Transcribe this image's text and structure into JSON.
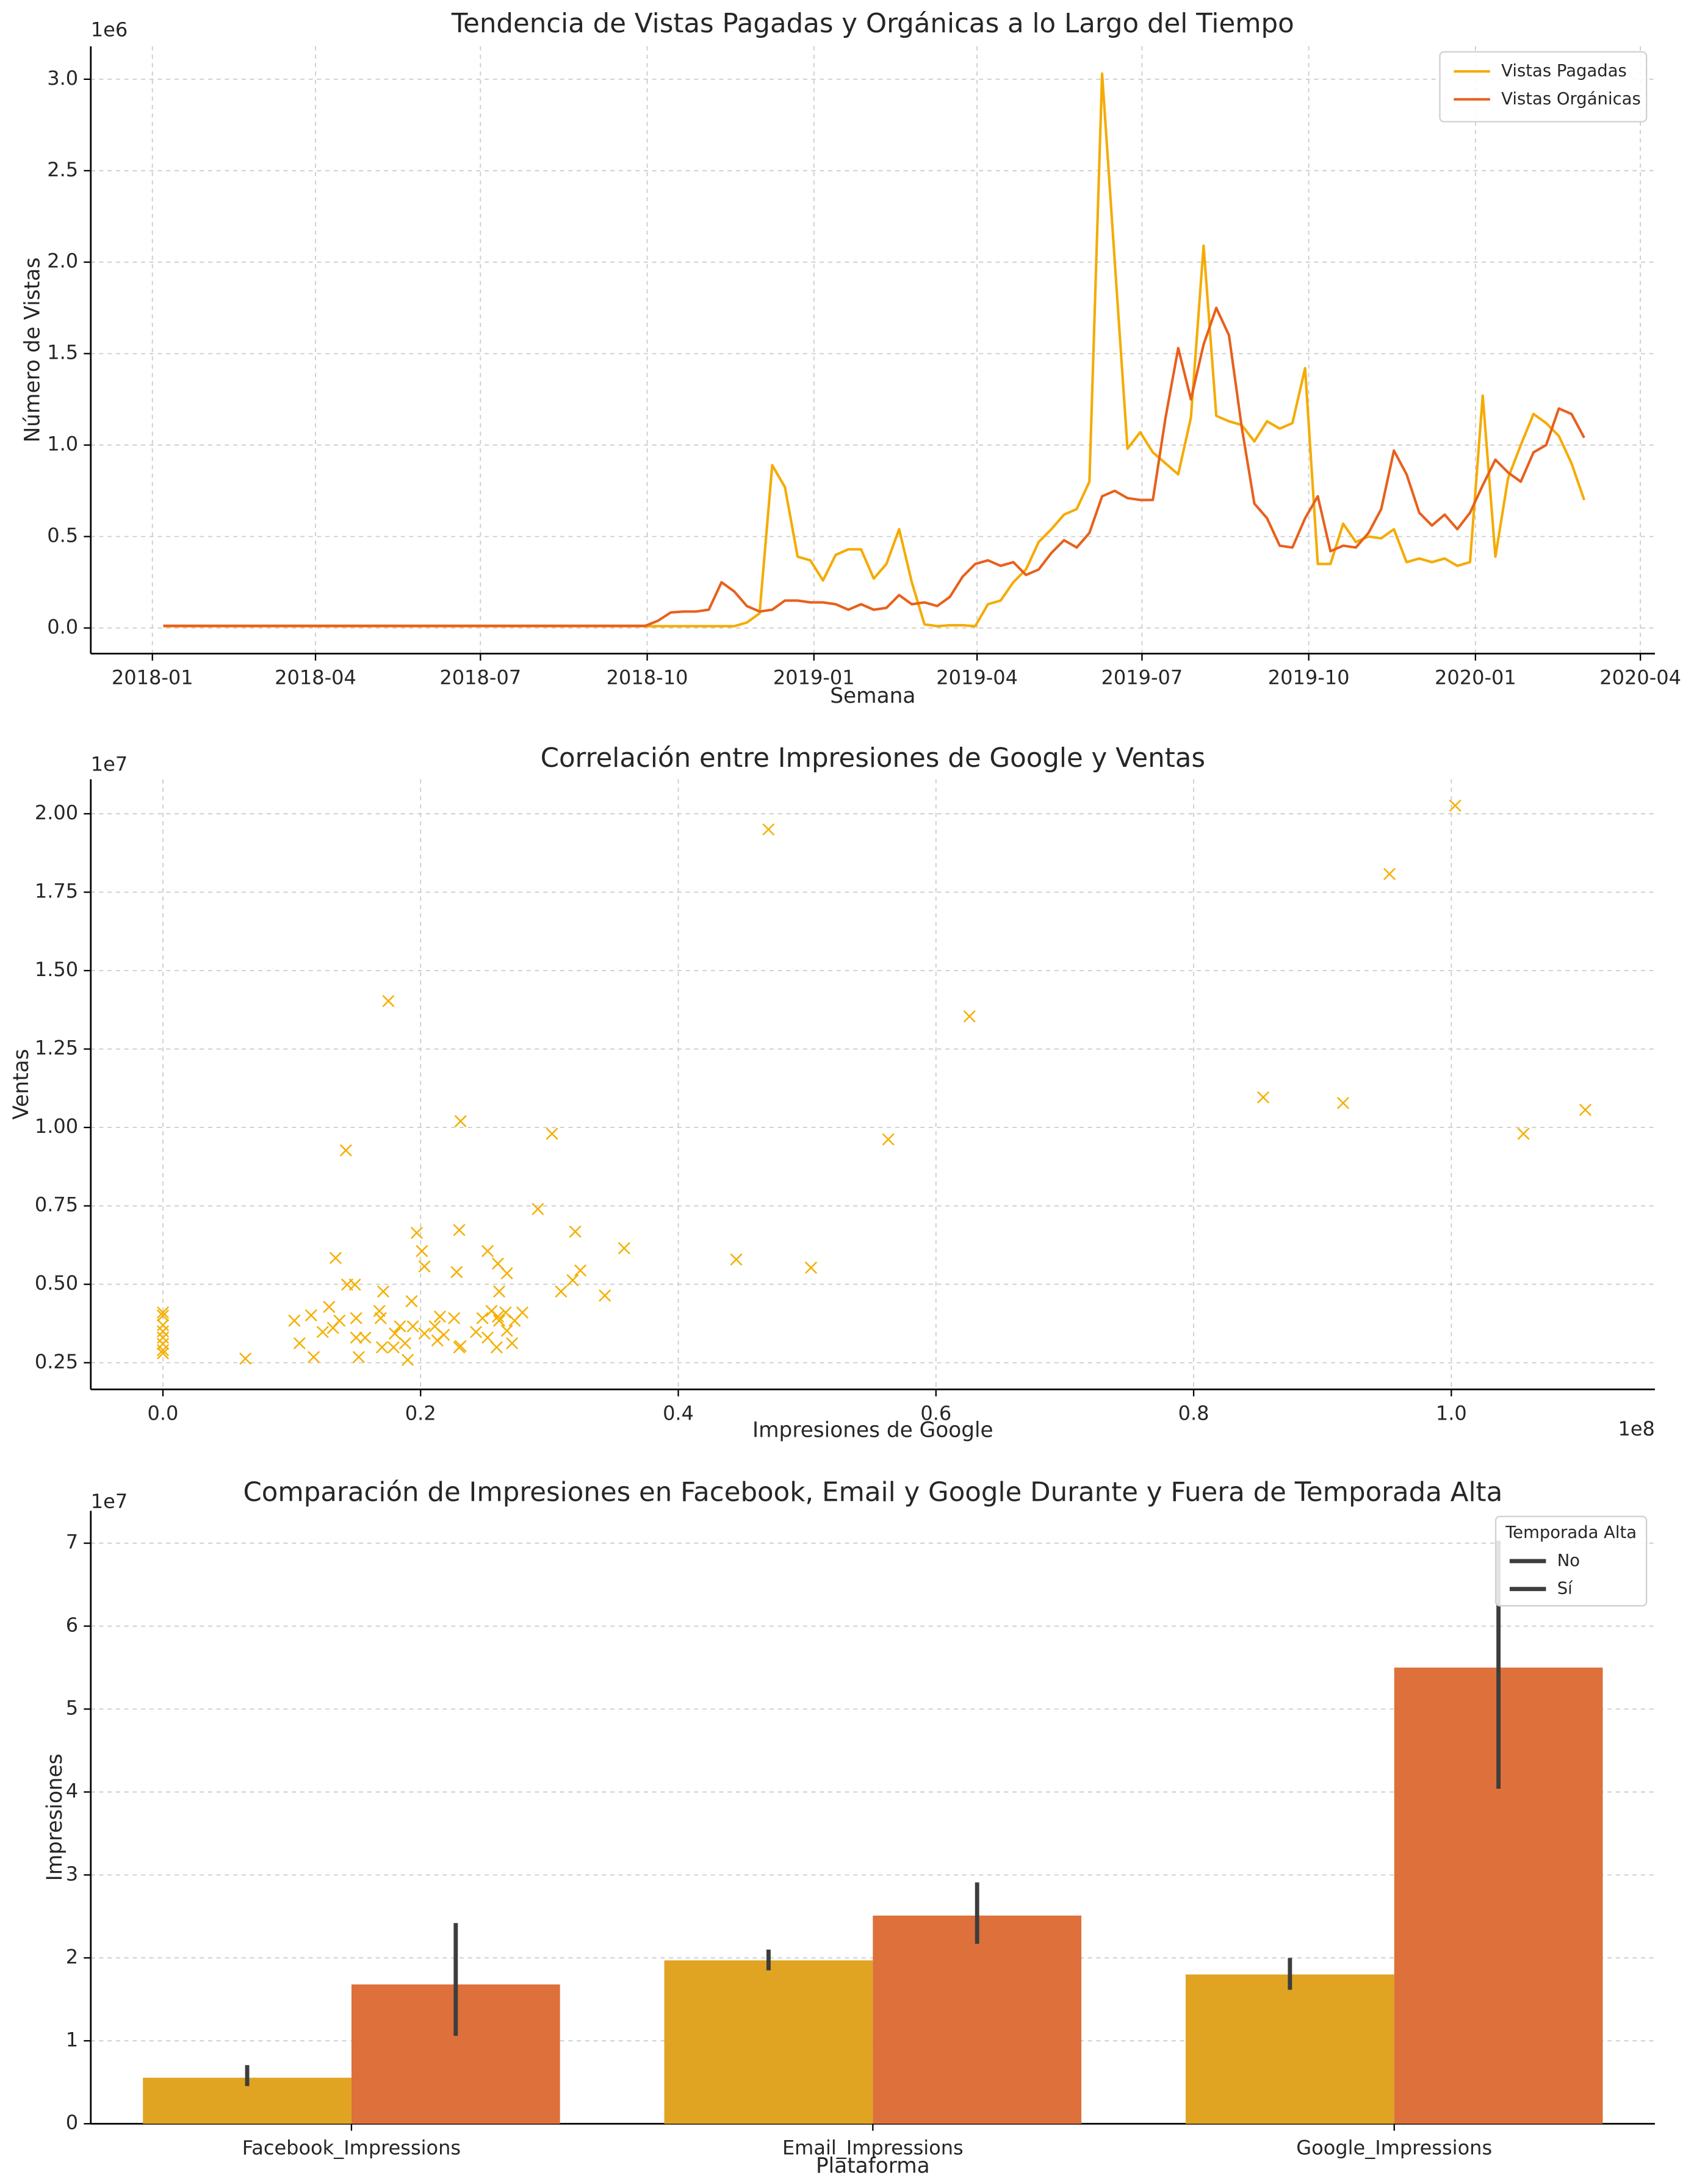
{
  "chart_data": [
    {
      "type": "line",
      "title": "Tendencia de Vistas Pagadas y Orgánicas a lo Largo del Tiempo",
      "x_label": "Semana",
      "y_label": "Número de Vistas",
      "y_offset": "1e6",
      "x": [
        "2018-01-07",
        "2018-01-14",
        "2018-01-21",
        "2018-01-28",
        "2018-02-04",
        "2018-02-11",
        "2018-02-18",
        "2018-02-25",
        "2018-03-04",
        "2018-03-11",
        "2018-03-18",
        "2018-03-25",
        "2018-04-01",
        "2018-04-08",
        "2018-04-15",
        "2018-04-22",
        "2018-04-29",
        "2018-05-06",
        "2018-05-13",
        "2018-05-20",
        "2018-05-27",
        "2018-06-03",
        "2018-06-10",
        "2018-06-17",
        "2018-06-24",
        "2018-07-01",
        "2018-07-08",
        "2018-07-15",
        "2018-07-22",
        "2018-07-29",
        "2018-08-05",
        "2018-08-12",
        "2018-08-19",
        "2018-08-26",
        "2018-09-02",
        "2018-09-09",
        "2018-09-16",
        "2018-09-23",
        "2018-09-30",
        "2018-10-07",
        "2018-10-14",
        "2018-10-21",
        "2018-10-28",
        "2018-11-04",
        "2018-11-11",
        "2018-11-18",
        "2018-11-25",
        "2018-12-02",
        "2018-12-09",
        "2018-12-16",
        "2018-12-23",
        "2018-12-30",
        "2019-01-06",
        "2019-01-13",
        "2019-01-20",
        "2019-01-27",
        "2019-02-03",
        "2019-02-10",
        "2019-02-17",
        "2019-02-24",
        "2019-03-03",
        "2019-03-10",
        "2019-03-17",
        "2019-03-24",
        "2019-03-31",
        "2019-04-07",
        "2019-04-14",
        "2019-04-21",
        "2019-04-28",
        "2019-05-05",
        "2019-05-12",
        "2019-05-19",
        "2019-05-26",
        "2019-06-02",
        "2019-06-09",
        "2019-06-16",
        "2019-06-23",
        "2019-06-30",
        "2019-07-07",
        "2019-07-14",
        "2019-07-21",
        "2019-07-28",
        "2019-08-04",
        "2019-08-11",
        "2019-08-18",
        "2019-08-25",
        "2019-09-01",
        "2019-09-08",
        "2019-09-15",
        "2019-09-22",
        "2019-09-29",
        "2019-10-06",
        "2019-10-13",
        "2019-10-20",
        "2019-10-27",
        "2019-11-03",
        "2019-11-10",
        "2019-11-17",
        "2019-11-24",
        "2019-12-01",
        "2019-12-08",
        "2019-12-15",
        "2019-12-22",
        "2019-12-29",
        "2020-01-05",
        "2020-01-12",
        "2020-01-19",
        "2020-01-26",
        "2020-02-02",
        "2020-02-09",
        "2020-02-16",
        "2020-02-23",
        "2020-03-01"
      ],
      "xlim": [
        "2017-11-28",
        "2020-04-09"
      ],
      "xticks": [
        "2018-01",
        "2018-04",
        "2018-07",
        "2018-10",
        "2019-01",
        "2019-04",
        "2019-07",
        "2019-10",
        "2020-01",
        "2020-04"
      ],
      "ylim": [
        -0.14,
        3.18
      ],
      "yticks": [
        {
          "value": 0,
          "label": "0.0"
        },
        0.5,
        {
          "value": 1,
          "label": "1.0"
        },
        1.5,
        {
          "value": 2,
          "label": "2.0"
        },
        2.5,
        {
          "value": 3,
          "label": "3.0"
        }
      ],
      "grid": true,
      "legend": "upper right",
      "series": [
        {
          "name": "Vistas Pagadas",
          "color": "#f5ab00",
          "values": [
            0.01,
            0.01,
            0.01,
            0.01,
            0.01,
            0.01,
            0.01,
            0.01,
            0.01,
            0.01,
            0.01,
            0.01,
            0.01,
            0.01,
            0.01,
            0.01,
            0.01,
            0.01,
            0.01,
            0.01,
            0.01,
            0.01,
            0.01,
            0.01,
            0.01,
            0.01,
            0.01,
            0.01,
            0.01,
            0.01,
            0.01,
            0.01,
            0.01,
            0.01,
            0.01,
            0.01,
            0.01,
            0.01,
            0.01,
            0.01,
            0.01,
            0.01,
            0.01,
            0.01,
            0.01,
            0.01,
            0.03,
            0.08,
            0.89,
            0.77,
            0.39,
            0.37,
            0.26,
            0.4,
            0.43,
            0.43,
            0.27,
            0.35,
            0.54,
            0.25,
            0.02,
            0.01,
            0.015,
            0.015,
            0.01,
            0.13,
            0.15,
            0.25,
            0.32,
            0.47,
            0.54,
            0.62,
            0.65,
            0.8,
            3.03,
            2.0,
            0.98,
            1.07,
            0.96,
            0.9,
            0.84,
            1.15,
            2.09,
            1.16,
            1.13,
            1.11,
            1.02,
            1.13,
            1.09,
            1.12,
            1.42,
            0.35,
            0.35,
            0.57,
            0.47,
            0.5,
            0.49,
            0.54,
            0.36,
            0.38,
            0.36,
            0.38,
            0.34,
            0.36,
            1.27,
            0.39,
            0.82,
            1.0,
            1.17,
            1.12,
            1.05,
            0.9,
            0.7
          ]
        },
        {
          "name": "Vistas Orgánicas",
          "color": "#e8601c",
          "values": [
            0.012,
            0.012,
            0.012,
            0.012,
            0.012,
            0.012,
            0.012,
            0.012,
            0.012,
            0.012,
            0.012,
            0.012,
            0.012,
            0.012,
            0.012,
            0.012,
            0.012,
            0.012,
            0.012,
            0.012,
            0.012,
            0.012,
            0.012,
            0.012,
            0.012,
            0.012,
            0.012,
            0.012,
            0.012,
            0.012,
            0.012,
            0.012,
            0.012,
            0.012,
            0.012,
            0.012,
            0.012,
            0.012,
            0.012,
            0.04,
            0.085,
            0.09,
            0.09,
            0.1,
            0.25,
            0.2,
            0.12,
            0.09,
            0.1,
            0.15,
            0.15,
            0.14,
            0.14,
            0.13,
            0.1,
            0.13,
            0.1,
            0.11,
            0.18,
            0.13,
            0.14,
            0.12,
            0.17,
            0.28,
            0.35,
            0.37,
            0.34,
            0.36,
            0.29,
            0.32,
            0.41,
            0.48,
            0.44,
            0.52,
            0.72,
            0.75,
            0.71,
            0.7,
            0.7,
            1.15,
            1.53,
            1.25,
            1.55,
            1.75,
            1.6,
            1.1,
            0.68,
            0.6,
            0.45,
            0.44,
            0.6,
            0.72,
            0.42,
            0.45,
            0.44,
            0.52,
            0.65,
            0.97,
            0.84,
            0.63,
            0.56,
            0.62,
            0.54,
            0.63,
            0.78,
            0.92,
            0.85,
            0.8,
            0.96,
            1.0,
            1.2,
            1.17,
            1.04
          ]
        }
      ]
    },
    {
      "type": "scatter",
      "title": "Correlación entre Impresiones de Google y Ventas",
      "x_label": "Impresiones de Google",
      "y_label": "Ventas",
      "x_offset": "1e8",
      "y_offset": "1e7",
      "marker": "x",
      "color": "#f5b000",
      "x": [
        0,
        0,
        0,
        0,
        0,
        0,
        0,
        0,
        0.064,
        0.175,
        0.142,
        0.231,
        0.302,
        0.47,
        0.563,
        0.626,
        1.003,
        0.952,
        0.854,
        0.916,
        1.056,
        1.104,
        0.445,
        0.503,
        0.358,
        0.291,
        0.32,
        0.23,
        0.197,
        0.201,
        0.203,
        0.252,
        0.134,
        0.26,
        0.267,
        0.228,
        0.324,
        0.318,
        0.309,
        0.343,
        0.143,
        0.149,
        0.171,
        0.261,
        0.129,
        0.102,
        0.115,
        0.137,
        0.15,
        0.168,
        0.169,
        0.193,
        0.194,
        0.203,
        0.184,
        0.18,
        0.188,
        0.19,
        0.152,
        0.117,
        0.106,
        0.124,
        0.157,
        0.17,
        0.179,
        0.211,
        0.215,
        0.218,
        0.213,
        0.226,
        0.231,
        0.243,
        0.248,
        0.255,
        0.252,
        0.259,
        0.261,
        0.267,
        0.26,
        0.266,
        0.273,
        0.279,
        0.271,
        0.23,
        0.15,
        0.132
      ],
      "values": [
        0.41,
        0.4,
        0.37,
        0.35,
        0.33,
        0.31,
        0.29,
        0.28,
        0.263,
        1.403,
        0.927,
        1.02,
        0.98,
        1.95,
        0.962,
        1.354,
        2.026,
        1.808,
        1.096,
        1.078,
        0.98,
        1.056,
        0.579,
        0.553,
        0.615,
        0.74,
        0.668,
        0.673,
        0.664,
        0.606,
        0.557,
        0.606,
        0.584,
        0.566,
        0.535,
        0.539,
        0.544,
        0.513,
        0.477,
        0.464,
        0.499,
        0.499,
        0.477,
        0.477,
        0.428,
        0.384,
        0.401,
        0.384,
        0.392,
        0.415,
        0.392,
        0.446,
        0.366,
        0.343,
        0.366,
        0.343,
        0.312,
        0.259,
        0.268,
        0.268,
        0.312,
        0.348,
        0.33,
        0.299,
        0.299,
        0.366,
        0.397,
        0.339,
        0.321,
        0.392,
        0.303,
        0.348,
        0.392,
        0.415,
        0.33,
        0.299,
        0.384,
        0.352,
        0.397,
        0.41,
        0.384,
        0.41,
        0.312,
        0.299,
        0.33,
        0.361
      ],
      "xlim": [
        -0.056,
        1.158
      ],
      "xticks": [
        {
          "value": 0,
          "label": "0.0"
        },
        0.2,
        0.4,
        0.6,
        0.8,
        {
          "value": 1,
          "label": "1.0"
        }
      ],
      "ylim": [
        0.165,
        2.11
      ],
      "yticks": [
        0.25,
        {
          "value": 0.5,
          "label": "0.50"
        },
        0.75,
        {
          "value": 1,
          "label": "1.00"
        },
        1.25,
        {
          "value": 1.5,
          "label": "1.50"
        },
        1.75,
        {
          "value": 2,
          "label": "2.00"
        }
      ],
      "grid": true
    },
    {
      "type": "bar",
      "title": "Comparación de Impresiones en Facebook, Email y Google Durante y Fuera de Temporada Alta",
      "x_label": "Plataforma",
      "y_label": "Impresiones",
      "y_offset": "1e7",
      "categories": [
        "Facebook_Impressions",
        "Email_Impressions",
        "Google_Impressions"
      ],
      "legend": "upper right",
      "legend_title": "Temporada Alta",
      "error_color": "#3d3d3d",
      "series": [
        {
          "name": "No",
          "color": "#e0a422",
          "values": [
            0.555,
            1.97,
            1.8
          ],
          "ci": [
            [
              0.454,
              0.707
            ],
            [
              1.85,
              2.1
            ],
            [
              1.615,
              2.0
            ]
          ]
        },
        {
          "name": "Sí",
          "color": "#dd703b",
          "values": [
            1.68,
            2.51,
            5.5
          ],
          "ci": [
            [
              1.06,
              2.42
            ],
            [
              2.17,
              2.91
            ],
            [
              4.04,
              7.03
            ]
          ]
        }
      ],
      "ylim": [
        0,
        7.39
      ],
      "yticks": [
        0,
        1,
        2,
        3,
        4,
        5,
        6,
        7
      ],
      "grid": "y"
    }
  ]
}
